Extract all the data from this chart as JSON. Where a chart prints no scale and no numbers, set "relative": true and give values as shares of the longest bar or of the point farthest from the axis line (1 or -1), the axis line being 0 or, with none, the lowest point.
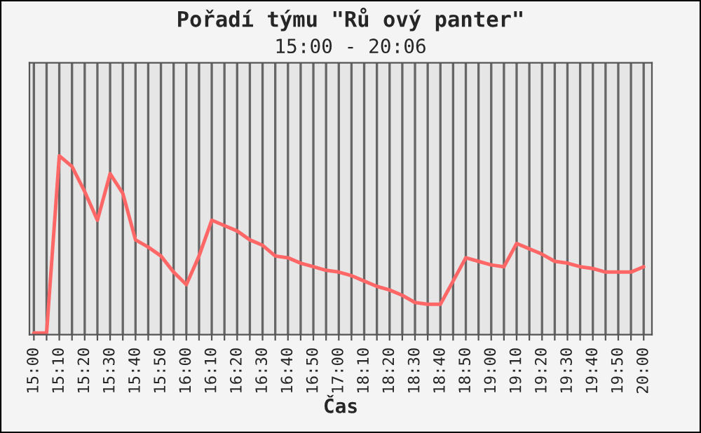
{
  "chart_data": {
    "type": "line",
    "title": "Pořadí týmu \"Rů ový panter\"",
    "subtitle": "15:00 - 20:06",
    "xlabel": "Čas",
    "relative": true,
    "grid": "x",
    "marker": "none",
    "line_style": "solid",
    "categories": [
      "15:00",
      null,
      "15:10",
      null,
      "15:20",
      null,
      "15:30",
      null,
      "15:40",
      null,
      "15:50",
      null,
      "16:00",
      null,
      "16:10",
      null,
      "16:20",
      null,
      "16:30",
      null,
      "16:40",
      null,
      "16:50",
      null,
      "17:00",
      null,
      "18:10",
      null,
      "18:20",
      null,
      "18:30",
      null,
      "18:40",
      null,
      "18:50",
      null,
      "19:00",
      null,
      "19:10",
      null,
      "19:20",
      null,
      "19:30",
      null,
      "19:40",
      null,
      "19:50",
      null,
      "20:00"
    ],
    "series": [
      {
        "color": "#ff6666",
        "values": [
          0.01,
          0.01,
          1.0,
          0.94,
          0.8,
          0.64,
          0.9,
          0.79,
          0.53,
          0.49,
          0.44,
          0.35,
          0.28,
          0.44,
          0.64,
          0.61,
          0.58,
          0.53,
          0.5,
          0.44,
          0.43,
          0.4,
          0.38,
          0.36,
          0.35,
          0.33,
          0.3,
          0.27,
          0.25,
          0.22,
          0.18,
          0.17,
          0.17,
          0.3,
          0.43,
          0.41,
          0.39,
          0.38,
          0.51,
          0.48,
          0.45,
          0.41,
          0.4,
          0.38,
          0.37,
          0.35,
          0.35,
          0.35,
          0.38
        ]
      }
    ]
  }
}
